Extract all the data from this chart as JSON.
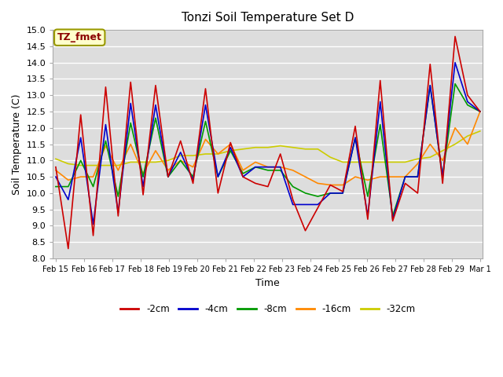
{
  "title": "Tonzi Soil Temperature Set D",
  "xlabel": "Time",
  "ylabel": "Soil Temperature (C)",
  "ylim": [
    8.0,
    15.0
  ],
  "yticks": [
    8.0,
    8.5,
    9.0,
    9.5,
    10.0,
    10.5,
    11.0,
    11.5,
    12.0,
    12.5,
    13.0,
    13.5,
    14.0,
    14.5,
    15.0
  ],
  "fig_bg_color": "#ffffff",
  "plot_bg_color": "#dddddd",
  "grid_color": "#ffffff",
  "annotation_text": "TZ_fmet",
  "annotation_color": "#8b0000",
  "annotation_bg": "#ffffcc",
  "annotation_border": "#999900",
  "series_colors": {
    "-2cm": "#cc0000",
    "-4cm": "#0000cc",
    "-8cm": "#009900",
    "-16cm": "#ff8800",
    "-32cm": "#cccc00"
  },
  "x_labels": [
    "Feb 15",
    "Feb 16",
    "Feb 17",
    "Feb 18",
    "Feb 19",
    "Feb 20",
    "Feb 21",
    "Feb 22",
    "Feb 23",
    "Feb 24",
    "Feb 25",
    "Feb 26",
    "Feb 27",
    "Feb 28",
    "Feb 29",
    "Mar 1"
  ],
  "data_2cm": [
    10.8,
    8.3,
    12.4,
    8.7,
    13.25,
    9.3,
    13.4,
    9.95,
    13.3,
    10.5,
    11.6,
    10.3,
    13.2,
    10.0,
    11.55,
    10.5,
    10.3,
    10.2,
    11.2,
    9.8,
    8.85,
    9.55,
    10.25,
    10.05,
    12.05,
    9.2,
    13.45,
    9.15,
    10.3,
    10.0,
    13.95,
    10.3,
    14.8,
    13.0,
    12.5
  ],
  "data_4cm": [
    10.5,
    9.8,
    11.7,
    9.05,
    12.1,
    9.4,
    12.75,
    10.2,
    12.7,
    10.5,
    11.25,
    10.4,
    12.7,
    10.5,
    11.4,
    10.5,
    10.8,
    10.8,
    10.8,
    9.65,
    9.65,
    9.65,
    10.0,
    10.0,
    11.7,
    9.3,
    12.8,
    9.2,
    10.5,
    10.5,
    13.3,
    10.5,
    14.0,
    12.8,
    12.5
  ],
  "data_8cm": [
    10.2,
    10.2,
    11.0,
    10.2,
    11.6,
    9.9,
    12.15,
    10.5,
    12.3,
    10.5,
    11.0,
    10.5,
    12.2,
    10.5,
    11.3,
    10.6,
    10.8,
    10.7,
    10.7,
    10.2,
    10.0,
    9.9,
    10.0,
    10.0,
    11.7,
    9.9,
    12.1,
    9.3,
    10.5,
    10.5,
    13.3,
    10.5,
    13.35,
    12.7,
    12.5
  ],
  "data_16cm": [
    10.7,
    10.4,
    10.5,
    10.5,
    11.45,
    10.7,
    11.5,
    10.6,
    11.3,
    10.7,
    11.0,
    10.8,
    11.65,
    11.2,
    11.5,
    10.7,
    10.95,
    10.8,
    10.8,
    10.7,
    10.5,
    10.3,
    10.25,
    10.25,
    10.5,
    10.4,
    10.5,
    10.5,
    10.5,
    10.9,
    11.5,
    11.0,
    12.0,
    11.5,
    12.5
  ],
  "data_32cm": [
    11.05,
    10.9,
    10.85,
    10.85,
    10.85,
    10.85,
    10.95,
    10.95,
    10.95,
    11.0,
    11.15,
    11.15,
    11.2,
    11.2,
    11.3,
    11.35,
    11.4,
    11.4,
    11.45,
    11.4,
    11.35,
    11.35,
    11.1,
    10.95,
    10.95,
    10.95,
    10.95,
    10.95,
    10.95,
    11.05,
    11.1,
    11.3,
    11.5,
    11.75,
    11.9
  ]
}
